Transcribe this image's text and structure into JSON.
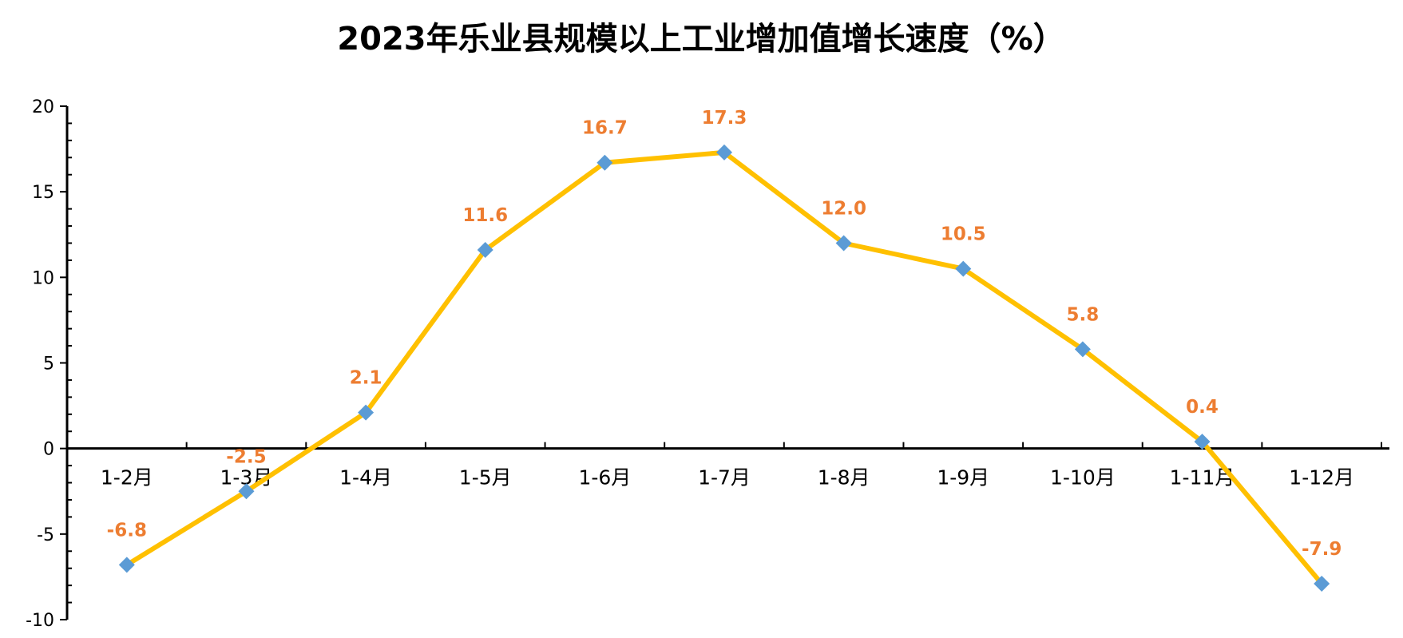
{
  "chart_data": {
    "type": "line",
    "title": "2023年乐业县规模以上工业增加值增长速度（%）",
    "xlabel": "",
    "ylabel": "",
    "categories": [
      "1-2月",
      "1-3月",
      "1-4月",
      "1-5月",
      "1-6月",
      "1-7月",
      "1-8月",
      "1-9月",
      "1-10月",
      "1-11月",
      "1-12月"
    ],
    "series": [
      {
        "values": [
          -6.8,
          -2.5,
          2.1,
          11.6,
          16.7,
          17.3,
          12.0,
          10.5,
          5.8,
          0.4,
          -7.9
        ],
        "labels": [
          "-6.8",
          "-2.5",
          "2.1",
          "11.6",
          "16.7",
          "17.3",
          "12.0",
          "10.5",
          "5.8",
          "0.4",
          "-7.9"
        ]
      }
    ],
    "ylim": [
      -10,
      20
    ],
    "yticks": [
      -10,
      -5,
      0,
      5,
      10,
      15,
      20
    ],
    "ytick_labels": [
      "-10",
      "-5",
      "0",
      "5",
      "10",
      "15",
      "20"
    ],
    "grid": false,
    "legend": "none",
    "colors": {
      "line": "#FFC000",
      "marker": "#5B9BD5",
      "data_label": "#ED7D31",
      "axis": "#000000"
    },
    "marker": "diamond"
  }
}
